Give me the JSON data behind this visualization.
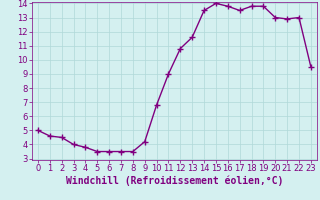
{
  "x": [
    0,
    1,
    2,
    3,
    4,
    5,
    6,
    7,
    8,
    9,
    10,
    11,
    12,
    13,
    14,
    15,
    16,
    17,
    18,
    19,
    20,
    21,
    22,
    23
  ],
  "y": [
    5.0,
    4.6,
    4.5,
    4.0,
    3.8,
    3.5,
    3.5,
    3.5,
    3.5,
    4.2,
    6.8,
    9.0,
    10.8,
    11.6,
    13.5,
    14.0,
    13.8,
    13.5,
    13.8,
    13.8,
    13.0,
    12.9,
    13.0,
    9.5
  ],
  "line_color": "#800080",
  "marker": "+",
  "marker_size": 4,
  "marker_lw": 1.0,
  "bg_color": "#d4f0f0",
  "grid_color": "#b0d8d8",
  "xlabel": "Windchill (Refroidissement éolien,°C)",
  "xlabel_fontsize": 7,
  "ylim_min": 3,
  "ylim_max": 14,
  "xlim_min": -0.5,
  "xlim_max": 23.5,
  "yticks": [
    3,
    4,
    5,
    6,
    7,
    8,
    9,
    10,
    11,
    12,
    13,
    14
  ],
  "xticks": [
    0,
    1,
    2,
    3,
    4,
    5,
    6,
    7,
    8,
    9,
    10,
    11,
    12,
    13,
    14,
    15,
    16,
    17,
    18,
    19,
    20,
    21,
    22,
    23
  ],
  "tick_fontsize": 6,
  "line_width": 1.0
}
